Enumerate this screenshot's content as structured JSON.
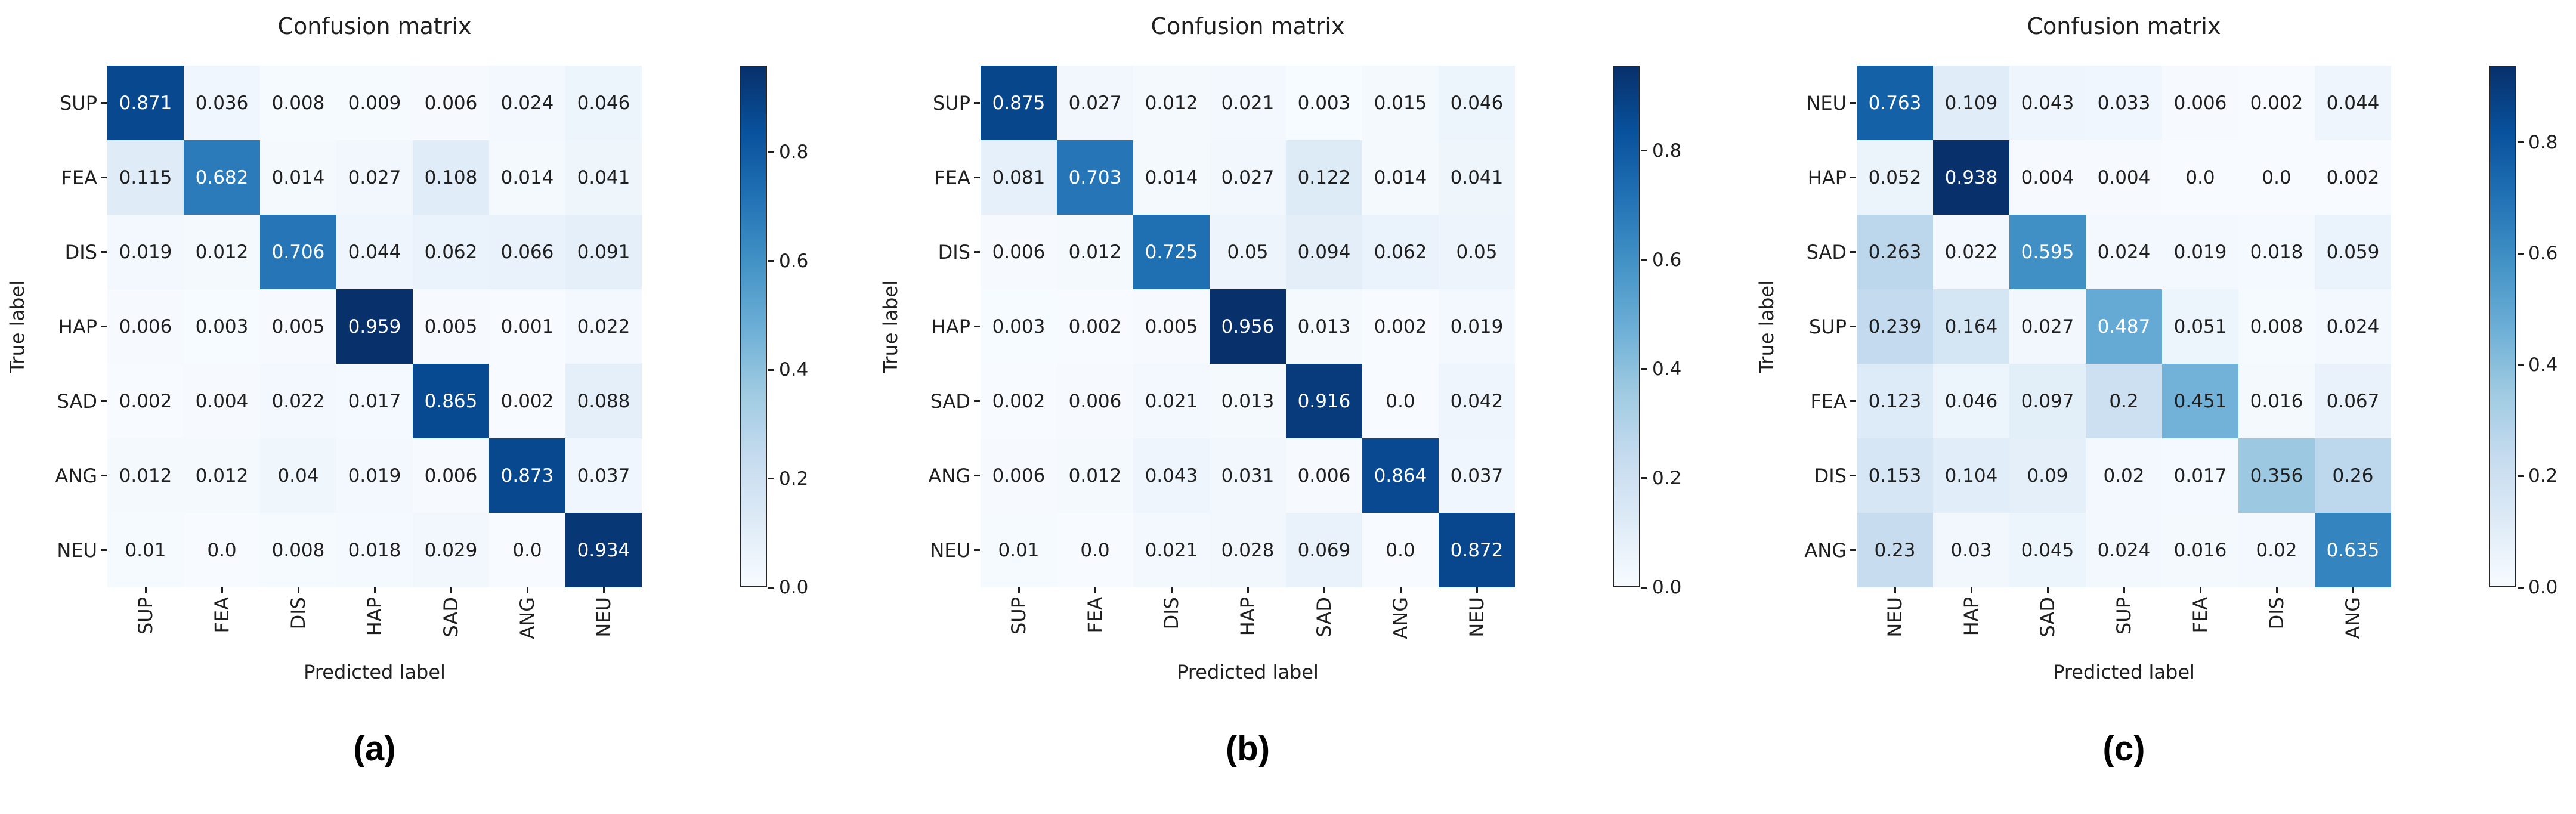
{
  "colors": {
    "background": "#ffffff",
    "text_dark": "#1f1f1f",
    "text_light": "#ffffff",
    "colorbar_outline": "#262626",
    "blues_anchors": [
      {
        "t": 0.0,
        "hex": "#f7fbff"
      },
      {
        "t": 0.125,
        "hex": "#deebf7"
      },
      {
        "t": 0.25,
        "hex": "#c6dbef"
      },
      {
        "t": 0.375,
        "hex": "#9ecae1"
      },
      {
        "t": 0.5,
        "hex": "#6baed6"
      },
      {
        "t": 0.625,
        "hex": "#4292c6"
      },
      {
        "t": 0.75,
        "hex": "#2171b5"
      },
      {
        "t": 0.875,
        "hex": "#08519c"
      },
      {
        "t": 1.0,
        "hex": "#08306b"
      }
    ]
  },
  "chart_data": [
    {
      "type": "heatmap",
      "panel_caption": "(a)",
      "title": "Confusion matrix",
      "xlabel": "Predicted label",
      "ylabel": "True label",
      "colormap": "Blues",
      "x_tick_labels": [
        "SUP",
        "FEA",
        "DIS",
        "HAP",
        "SAD",
        "ANG",
        "NEU"
      ],
      "y_tick_labels": [
        "SUP",
        "FEA",
        "DIS",
        "HAP",
        "SAD",
        "ANG",
        "NEU"
      ],
      "values": [
        [
          0.871,
          0.036,
          0.008,
          0.009,
          0.006,
          0.024,
          0.046
        ],
        [
          0.115,
          0.682,
          0.014,
          0.027,
          0.108,
          0.014,
          0.041
        ],
        [
          0.019,
          0.012,
          0.706,
          0.044,
          0.062,
          0.066,
          0.091
        ],
        [
          0.006,
          0.003,
          0.005,
          0.959,
          0.005,
          0.001,
          0.022
        ],
        [
          0.002,
          0.004,
          0.022,
          0.017,
          0.865,
          0.002,
          0.088
        ],
        [
          0.012,
          0.012,
          0.04,
          0.019,
          0.006,
          0.873,
          0.037
        ],
        [
          0.01,
          0.0,
          0.008,
          0.018,
          0.029,
          0.0,
          0.934
        ]
      ],
      "vmin": 0.0,
      "vmax": 0.959,
      "colorbar_ticks": [
        0.8,
        0.6,
        0.4,
        0.2,
        0.0
      ]
    },
    {
      "type": "heatmap",
      "panel_caption": "(b)",
      "title": "Confusion matrix",
      "xlabel": "Predicted label",
      "ylabel": "True label",
      "colormap": "Blues",
      "x_tick_labels": [
        "SUP",
        "FEA",
        "DIS",
        "HAP",
        "SAD",
        "ANG",
        "NEU"
      ],
      "y_tick_labels": [
        "SUP",
        "FEA",
        "DIS",
        "HAP",
        "SAD",
        "ANG",
        "NEU"
      ],
      "values": [
        [
          0.875,
          0.027,
          0.012,
          0.021,
          0.003,
          0.015,
          0.046
        ],
        [
          0.081,
          0.703,
          0.014,
          0.027,
          0.122,
          0.014,
          0.041
        ],
        [
          0.006,
          0.012,
          0.725,
          0.05,
          0.094,
          0.062,
          0.05
        ],
        [
          0.003,
          0.002,
          0.005,
          0.956,
          0.013,
          0.002,
          0.019
        ],
        [
          0.002,
          0.006,
          0.021,
          0.013,
          0.916,
          0.0,
          0.042
        ],
        [
          0.006,
          0.012,
          0.043,
          0.031,
          0.006,
          0.864,
          0.037
        ],
        [
          0.01,
          0.0,
          0.021,
          0.028,
          0.069,
          0.0,
          0.872
        ]
      ],
      "vmin": 0.0,
      "vmax": 0.956,
      "colorbar_ticks": [
        0.8,
        0.6,
        0.4,
        0.2,
        0.0
      ]
    },
    {
      "type": "heatmap",
      "panel_caption": "(c)",
      "title": "Confusion matrix",
      "xlabel": "Predicted label",
      "ylabel": "True label",
      "colormap": "Blues",
      "x_tick_labels": [
        "NEU",
        "HAP",
        "SAD",
        "SUP",
        "FEA",
        "DIS",
        "ANG"
      ],
      "y_tick_labels": [
        "NEU",
        "HAP",
        "SAD",
        "SUP",
        "FEA",
        "DIS",
        "ANG"
      ],
      "values": [
        [
          0.763,
          0.109,
          0.043,
          0.033,
          0.006,
          0.002,
          0.044
        ],
        [
          0.052,
          0.938,
          0.004,
          0.004,
          0.0,
          0.0,
          0.002
        ],
        [
          0.263,
          0.022,
          0.595,
          0.024,
          0.019,
          0.018,
          0.059
        ],
        [
          0.239,
          0.164,
          0.027,
          0.487,
          0.051,
          0.008,
          0.024
        ],
        [
          0.123,
          0.046,
          0.097,
          0.2,
          0.451,
          0.016,
          0.067
        ],
        [
          0.153,
          0.104,
          0.09,
          0.02,
          0.017,
          0.356,
          0.26
        ],
        [
          0.23,
          0.03,
          0.045,
          0.024,
          0.016,
          0.02,
          0.635
        ]
      ],
      "vmin": 0.0,
      "vmax": 0.938,
      "colorbar_ticks": [
        0.8,
        0.6,
        0.4,
        0.2,
        0.0
      ]
    }
  ]
}
